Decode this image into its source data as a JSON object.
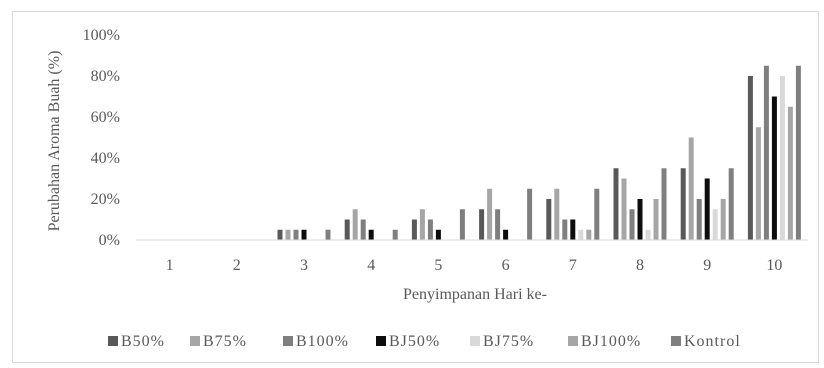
{
  "chart_data": {
    "type": "bar",
    "title": "",
    "xlabel": "Penyimpanan Hari ke-",
    "ylabel": "Perubahan Aroma Buah (%)",
    "ylim": [
      0,
      100
    ],
    "yticks": [
      "0%",
      "20%",
      "40%",
      "60%",
      "80%",
      "100%"
    ],
    "ytick_values": [
      0,
      20,
      40,
      60,
      80,
      100
    ],
    "categories": [
      "1",
      "2",
      "3",
      "4",
      "5",
      "6",
      "7",
      "8",
      "9",
      "10"
    ],
    "grid": false,
    "legend_position": "bottom",
    "series": [
      {
        "name": "B50%",
        "color": "#595959",
        "values": [
          0,
          0,
          5,
          10,
          10,
          15,
          20,
          35,
          35,
          80
        ]
      },
      {
        "name": "B75%",
        "color": "#a6a6a6",
        "values": [
          0,
          0,
          5,
          15,
          15,
          25,
          25,
          30,
          50,
          55
        ]
      },
      {
        "name": "B100%",
        "color": "#7f7f7f",
        "values": [
          0,
          0,
          5,
          10,
          10,
          15,
          10,
          15,
          20,
          85
        ]
      },
      {
        "name": "BJ50%",
        "color": "#0d0d0d",
        "values": [
          0,
          0,
          5,
          5,
          5,
          5,
          10,
          20,
          30,
          70
        ]
      },
      {
        "name": "BJ75%",
        "color": "#d9d9d9",
        "values": [
          0,
          0,
          0,
          0,
          0,
          0,
          5,
          5,
          15,
          80
        ]
      },
      {
        "name": "BJ100%",
        "color": "#a6a6a6",
        "values": [
          0,
          0,
          0,
          0,
          0,
          0,
          5,
          20,
          20,
          65
        ]
      },
      {
        "name": "Kontrol",
        "color": "#7f7f7f",
        "values": [
          0,
          0,
          5,
          5,
          15,
          25,
          25,
          35,
          35,
          85
        ]
      }
    ]
  }
}
